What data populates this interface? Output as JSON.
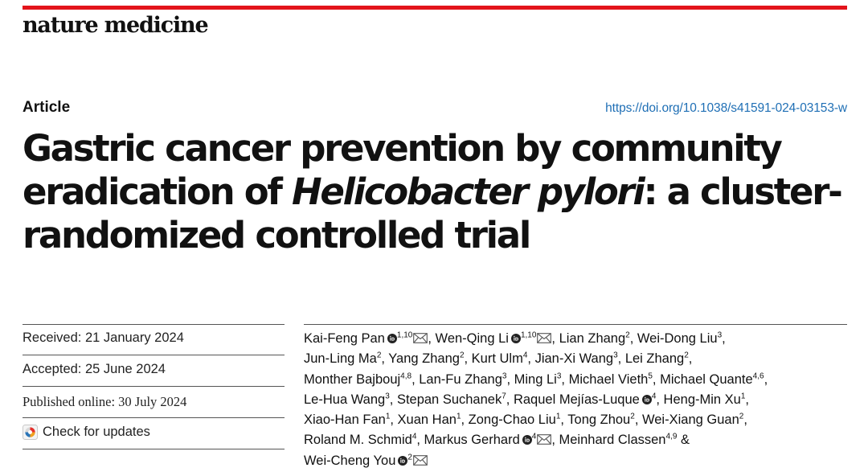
{
  "header": {
    "journal_name": "nature medicine",
    "accent_color": "#e3141b"
  },
  "article": {
    "type": "Article",
    "doi": "https://doi.org/10.1038/s41591-024-03153-w",
    "title_part1": "Gastric cancer prevention by community eradication of ",
    "title_italic": "Helicobacter pylori",
    "title_part2": ": a cluster-randomized controlled trial"
  },
  "dates": {
    "received": "Received: 21 January 2024",
    "accepted": "Accepted: 25 June 2024",
    "published": "Published online: 30 July 2024"
  },
  "check_updates": {
    "label": "Check for updates",
    "icon": "check-for-updates-icon"
  },
  "icons": {
    "orcid": "orcid-icon",
    "email": "envelope-icon"
  },
  "authors": [
    [
      {
        "name": "Kai-Feng Pan",
        "orcid": true,
        "sup": "1,10",
        "mail": true,
        "sep": ", "
      },
      {
        "name": "Wen-Qing Li",
        "orcid": true,
        "sup": "1,10",
        "mail": true,
        "sep": ", "
      },
      {
        "name": "Lian Zhang",
        "orcid": false,
        "sup": "2",
        "mail": false,
        "sep": ", "
      },
      {
        "name": "Wei-Dong Liu",
        "orcid": false,
        "sup": "3",
        "mail": false,
        "sep": ","
      }
    ],
    [
      {
        "name": "Jun-Ling Ma",
        "orcid": false,
        "sup": "2",
        "mail": false,
        "sep": ", "
      },
      {
        "name": "Yang Zhang",
        "orcid": false,
        "sup": "2",
        "mail": false,
        "sep": ", "
      },
      {
        "name": "Kurt Ulm",
        "orcid": false,
        "sup": "4",
        "mail": false,
        "sep": ", "
      },
      {
        "name": "Jian-Xi Wang",
        "orcid": false,
        "sup": "3",
        "mail": false,
        "sep": ", "
      },
      {
        "name": "Lei Zhang",
        "orcid": false,
        "sup": "2",
        "mail": false,
        "sep": ","
      }
    ],
    [
      {
        "name": "Monther Bajbouj",
        "orcid": false,
        "sup": "4,8",
        "mail": false,
        "sep": ", "
      },
      {
        "name": "Lan-Fu Zhang",
        "orcid": false,
        "sup": "3",
        "mail": false,
        "sep": ", "
      },
      {
        "name": "Ming Li",
        "orcid": false,
        "sup": "3",
        "mail": false,
        "sep": ", "
      },
      {
        "name": "Michael Vieth",
        "orcid": false,
        "sup": "5",
        "mail": false,
        "sep": ", "
      },
      {
        "name": "Michael Quante",
        "orcid": false,
        "sup": "4,6",
        "mail": false,
        "sep": ","
      }
    ],
    [
      {
        "name": "Le-Hua Wang",
        "orcid": false,
        "sup": "3",
        "mail": false,
        "sep": ", "
      },
      {
        "name": "Stepan Suchanek",
        "orcid": false,
        "sup": "7",
        "mail": false,
        "sep": ", "
      },
      {
        "name": "Raquel Mejías-Luque",
        "orcid": true,
        "sup": "4",
        "mail": false,
        "sep": ", "
      },
      {
        "name": "Heng-Min Xu",
        "orcid": false,
        "sup": "1",
        "mail": false,
        "sep": ","
      }
    ],
    [
      {
        "name": "Xiao-Han Fan",
        "orcid": false,
        "sup": "1",
        "mail": false,
        "sep": ", "
      },
      {
        "name": "Xuan Han",
        "orcid": false,
        "sup": "1",
        "mail": false,
        "sep": ", "
      },
      {
        "name": "Zong-Chao Liu",
        "orcid": false,
        "sup": "1",
        "mail": false,
        "sep": ", "
      },
      {
        "name": "Tong Zhou",
        "orcid": false,
        "sup": "2",
        "mail": false,
        "sep": ", "
      },
      {
        "name": "Wei-Xiang Guan",
        "orcid": false,
        "sup": "2",
        "mail": false,
        "sep": ","
      }
    ],
    [
      {
        "name": "Roland M. Schmid",
        "orcid": false,
        "sup": "4",
        "mail": false,
        "sep": ", "
      },
      {
        "name": "Markus Gerhard",
        "orcid": true,
        "sup": "4",
        "mail": true,
        "sep": ", "
      },
      {
        "name": "Meinhard Classen",
        "orcid": false,
        "sup": "4,9",
        "mail": false,
        "sep": " &"
      }
    ],
    [
      {
        "name": "Wei-Cheng You",
        "orcid": true,
        "sup": "2",
        "mail": true,
        "sep": ""
      }
    ]
  ]
}
